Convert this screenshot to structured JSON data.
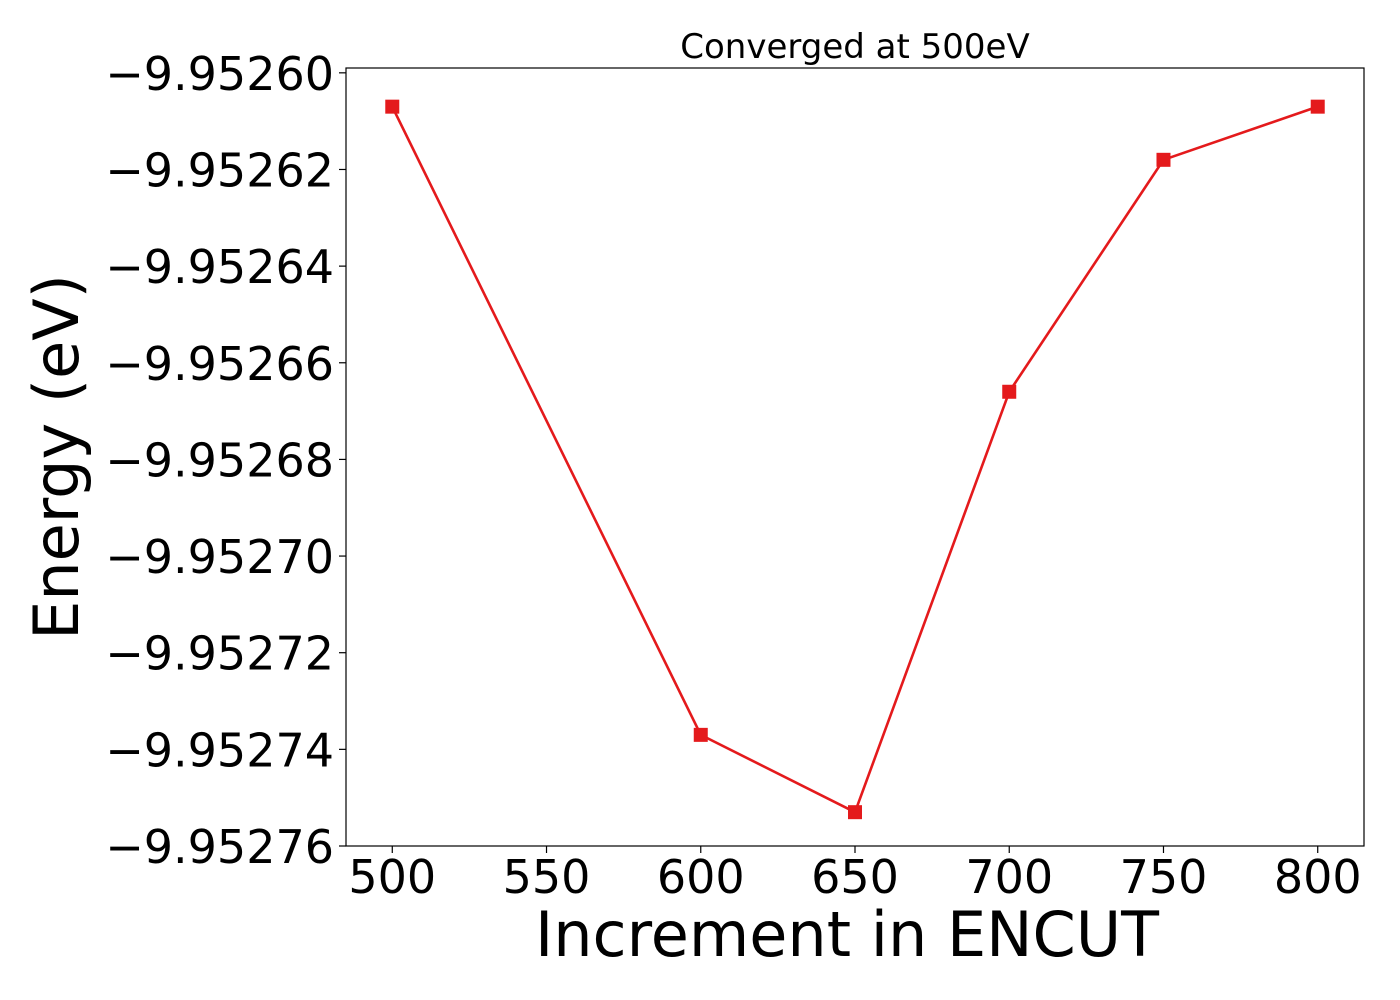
{
  "chart_data": {
    "type": "line",
    "title": "Converged at 500eV",
    "xlabel": "Increment in ENCUT",
    "ylabel": "Energy (eV)",
    "x": [
      500,
      600,
      650,
      700,
      750,
      800
    ],
    "series": [
      {
        "values": [
          -9.952607,
          -9.952737,
          -9.952753,
          -9.952666,
          -9.952618,
          -9.952607
        ],
        "color": "#e41a1c",
        "marker": "square"
      }
    ],
    "xlim": [
      485,
      815
    ],
    "ylim": [
      -9.95276,
      -9.952599
    ],
    "xticks": [
      500,
      550,
      600,
      650,
      700,
      750,
      800
    ],
    "xtick_labels": [
      "500",
      "550",
      "600",
      "650",
      "700",
      "750",
      "800"
    ],
    "yticks": [
      -9.9526,
      -9.95262,
      -9.95264,
      -9.95266,
      -9.95268,
      -9.9527,
      -9.95272,
      -9.95274,
      -9.95276
    ],
    "ytick_labels": [
      "−9.95260",
      "−9.95262",
      "−9.95264",
      "−9.95266",
      "−9.95268",
      "−9.95270",
      "−9.95272",
      "−9.95274",
      "−9.95276"
    ],
    "grid": false,
    "legend": "none"
  }
}
